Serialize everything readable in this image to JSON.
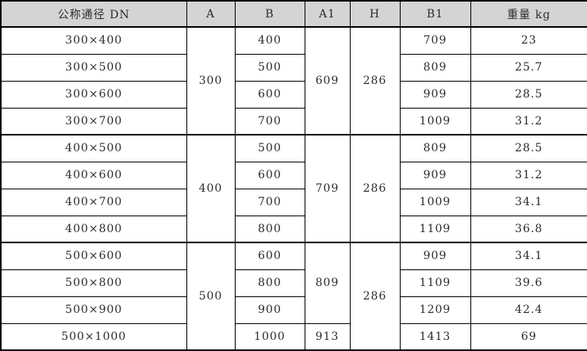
{
  "table": {
    "headers": [
      "公称通径 DN",
      "A",
      "B",
      "A1",
      "H",
      "B1",
      "重量 kg"
    ],
    "groups": [
      {
        "A": "300",
        "H": "286",
        "A1": [
          {
            "value": "609",
            "span": 4
          }
        ],
        "rows": [
          {
            "DN": "300×400",
            "B": "400",
            "B1": "709",
            "weight": "23"
          },
          {
            "DN": "300×500",
            "B": "500",
            "B1": "809",
            "weight": "25.7"
          },
          {
            "DN": "300×600",
            "B": "600",
            "B1": "909",
            "weight": "28.5"
          },
          {
            "DN": "300×700",
            "B": "700",
            "B1": "1009",
            "weight": "31.2"
          }
        ]
      },
      {
        "A": "400",
        "H": "286",
        "A1": [
          {
            "value": "709",
            "span": 4
          }
        ],
        "rows": [
          {
            "DN": "400×500",
            "B": "500",
            "B1": "809",
            "weight": "28.5"
          },
          {
            "DN": "400×600",
            "B": "600",
            "B1": "909",
            "weight": "31.2"
          },
          {
            "DN": "400×700",
            "B": "700",
            "B1": "1009",
            "weight": "34.1"
          },
          {
            "DN": "400×800",
            "B": "800",
            "B1": "1109",
            "weight": "36.8"
          }
        ]
      },
      {
        "A": "500",
        "H": "286",
        "A1": [
          {
            "value": "809",
            "span": 3
          },
          {
            "value": "913",
            "span": 1
          }
        ],
        "rows": [
          {
            "DN": "500×600",
            "B": "600",
            "B1": "909",
            "weight": "34.1"
          },
          {
            "DN": "500×800",
            "B": "800",
            "B1": "1109",
            "weight": "39.6"
          },
          {
            "DN": "500×900",
            "B": "900",
            "B1": "1209",
            "weight": "42.4"
          },
          {
            "DN": "500×1000",
            "B": "1000",
            "B1": "1413",
            "weight": "69"
          }
        ]
      }
    ]
  },
  "chart_data": {
    "type": "table",
    "columns": [
      "公称通径 DN",
      "A",
      "B",
      "A1",
      "H",
      "B1",
      "重量 kg"
    ],
    "rows": [
      [
        "300×400",
        300,
        400,
        609,
        286,
        709,
        23
      ],
      [
        "300×500",
        300,
        500,
        609,
        286,
        809,
        25.7
      ],
      [
        "300×600",
        300,
        600,
        609,
        286,
        909,
        28.5
      ],
      [
        "300×700",
        300,
        700,
        609,
        286,
        1009,
        31.2
      ],
      [
        "400×500",
        400,
        500,
        709,
        286,
        809,
        28.5
      ],
      [
        "400×600",
        400,
        600,
        709,
        286,
        909,
        31.2
      ],
      [
        "400×700",
        400,
        700,
        709,
        286,
        1009,
        34.1
      ],
      [
        "400×800",
        400,
        800,
        709,
        286,
        1109,
        36.8
      ],
      [
        "500×600",
        500,
        600,
        809,
        286,
        909,
        34.1
      ],
      [
        "500×800",
        500,
        800,
        809,
        286,
        1109,
        39.6
      ],
      [
        "500×900",
        500,
        900,
        809,
        286,
        1209,
        42.4
      ],
      [
        "500×1000",
        500,
        1000,
        913,
        286,
        1413,
        69
      ]
    ]
  },
  "style": {
    "header_bg": "#d4d4d4",
    "border_color": "#000000",
    "text_color": "#2b2b2b",
    "row_bg": "#ffffff"
  }
}
